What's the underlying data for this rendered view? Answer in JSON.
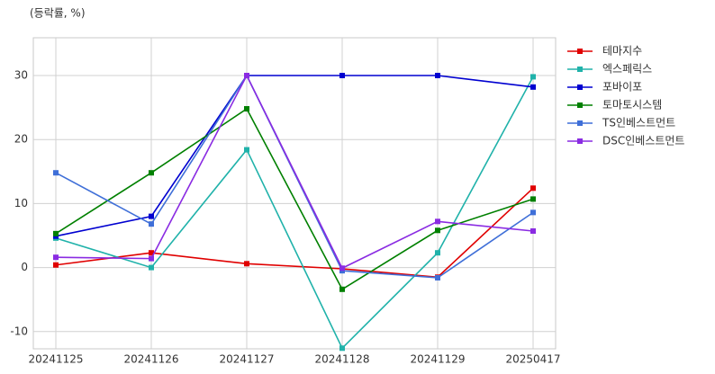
{
  "chart_data": {
    "type": "line",
    "ylabel": "(등락률, %)",
    "categories": [
      "20241125",
      "20241126",
      "20241127",
      "20241128",
      "20241129",
      "20250417"
    ],
    "series": [
      {
        "name": "테마지수",
        "color": "#e00000",
        "values": [
          0.4,
          2.3,
          0.6,
          -0.2,
          -1.5,
          12.4
        ]
      },
      {
        "name": "엑스페릭스",
        "color": "#20b2aa",
        "values": [
          4.6,
          0.0,
          18.4,
          -12.6,
          2.3,
          29.8
        ]
      },
      {
        "name": "포바이포",
        "color": "#0000d0",
        "values": [
          4.9,
          8.0,
          30.0,
          30.0,
          30.0,
          28.2
        ]
      },
      {
        "name": "토마토시스템",
        "color": "#008000",
        "values": [
          5.3,
          14.8,
          24.8,
          -3.4,
          5.8,
          10.7
        ]
      },
      {
        "name": "TS인베스트먼트",
        "color": "#3f6fd8",
        "values": [
          14.8,
          6.8,
          30.0,
          -0.5,
          -1.6,
          8.6
        ]
      },
      {
        "name": "DSC인베스트먼트",
        "color": "#8a2be2",
        "values": [
          1.6,
          1.4,
          30.0,
          -0.1,
          7.2,
          5.7
        ]
      }
    ],
    "ylim": [
      -12.7,
      35.9
    ],
    "yticks": [
      -10,
      0,
      10,
      20,
      30
    ],
    "grid": true,
    "legend": "right"
  }
}
